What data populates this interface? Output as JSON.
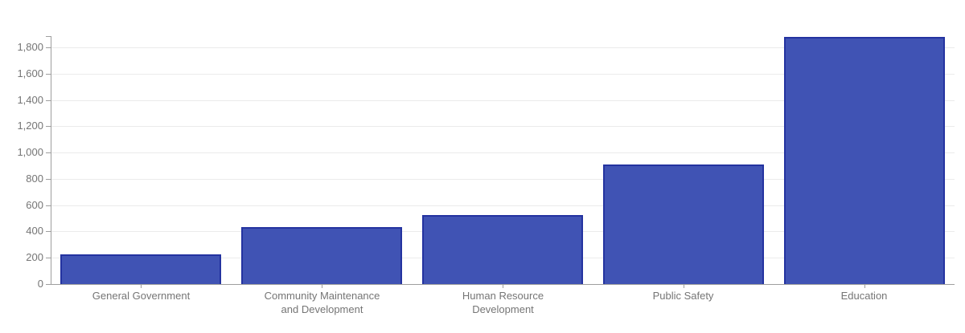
{
  "chart_data": {
    "type": "bar",
    "title": "",
    "xlabel": "",
    "ylabel": "",
    "legend": "none",
    "grid": true,
    "categories": [
      "General Government",
      "Community Maintenance and Development",
      "Human Resource Development",
      "Public Safety",
      "Education"
    ],
    "category_label_lines": [
      [
        "General Government"
      ],
      [
        "Community Maintenance",
        "and Development"
      ],
      [
        "Human Resource",
        "Development"
      ],
      [
        "Public Safety"
      ],
      [
        "Education"
      ]
    ],
    "values": [
      225,
      435,
      525,
      910,
      1880
    ],
    "ylim": [
      0,
      1885
    ],
    "y_tick_values": [
      0,
      200,
      400,
      600,
      800,
      1000,
      1200,
      1400,
      1600,
      1800
    ],
    "y_tick_labels": [
      "0",
      "200",
      "400",
      "600",
      "800",
      "1,000",
      "1,200",
      "1,400",
      "1,600",
      "1,800"
    ],
    "colors": {
      "bar_fill": "#4053b4",
      "bar_stroke": "#2433a0",
      "axis_line": "#9e9e9e",
      "gridline": "#ebebeb",
      "tick_label": "#757575",
      "background": "#ffffff"
    }
  }
}
